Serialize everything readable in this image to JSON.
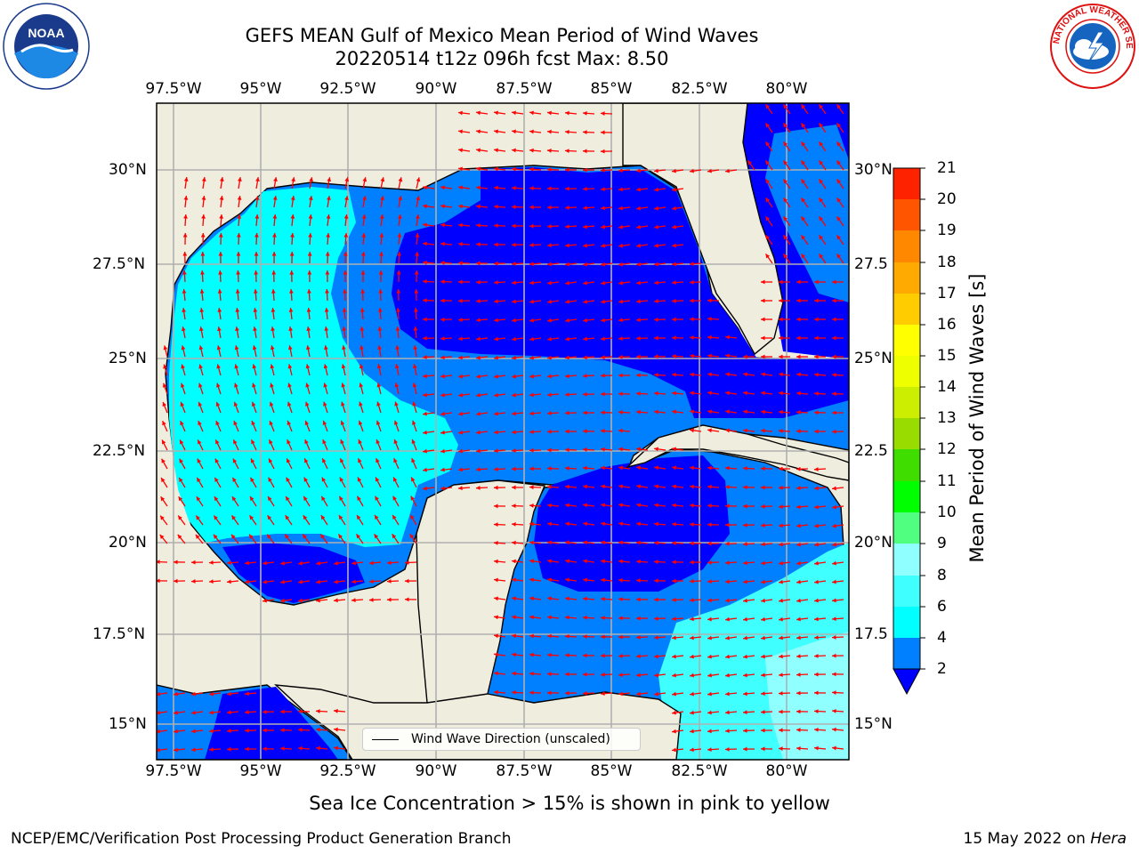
{
  "header": {
    "title_line1": "GEFS MEAN Gulf of Mexico Mean Period of Wind Waves",
    "title_line2": "20220514 t12z 096h fcst   Max: 8.50"
  },
  "logos": {
    "left": "NOAA",
    "left_ring_text": "NATIONAL OCEANIC AND ATMOSPHERIC ADMINISTRATION · U.S. DEPARTMENT OF COMMERCE",
    "right_ring_text": "NATIONAL WEATHER SERVICE"
  },
  "map": {
    "lon_labels": [
      "97.5°W",
      "95°W",
      "92.5°W",
      "90°W",
      "87.5°W",
      "85°W",
      "82.5°W",
      "80°W"
    ],
    "lat_labels": [
      "30°N",
      "27.5°N",
      "25°N",
      "22.5°N",
      "20°N",
      "17.5°N",
      "15°N"
    ],
    "lat_labels_right": [
      "30°N",
      "27.5",
      "25°N",
      "22.5",
      "20°N",
      "17.5",
      "15°N"
    ],
    "land_color": "#efedde",
    "legend_label": "Wind Wave Direction (unscaled)",
    "arrow_color": "#ff0000"
  },
  "colorbar": {
    "label": "Mean Period of Wind Waves [s]",
    "ticks": [
      "2",
      "4",
      "6",
      "8",
      "9",
      "10",
      "11",
      "12",
      "13",
      "14",
      "15",
      "16",
      "17",
      "18",
      "19",
      "20",
      "21"
    ],
    "colors": [
      "#0000ff",
      "#0080ff",
      "#00ffff",
      "#40ffff",
      "#90ffff",
      "#50ff80",
      "#00ff00",
      "#40dd00",
      "#99dd00",
      "#ccee00",
      "#eeff00",
      "#ffff00",
      "#ffcc00",
      "#ffaa00",
      "#ff8800",
      "#ff5500",
      "#ff2200",
      "#ff0000"
    ]
  },
  "footer": {
    "note": "Sea Ice Concentration > 15% is shown in pink to yellow",
    "left": "NCEP/EMC/Verification Post Processing Product Generation Branch",
    "right_prefix": "15 May 2022 on ",
    "right_machine": "Hera"
  }
}
